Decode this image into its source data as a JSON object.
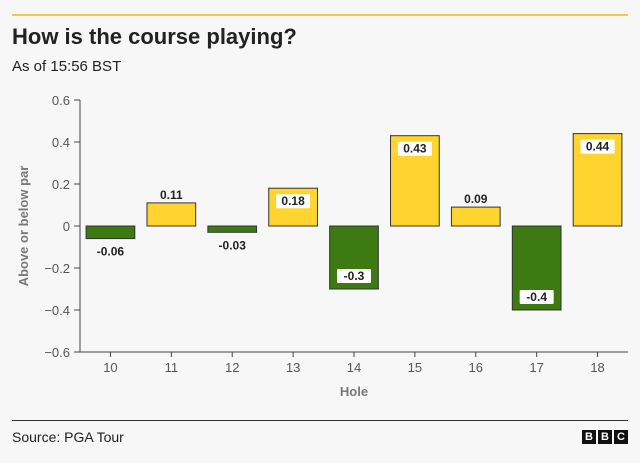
{
  "header": {
    "title": "How is the course playing?",
    "subtitle": "As of 15:56 BST"
  },
  "footer": {
    "source": "Source: PGA Tour",
    "logo_letters": [
      "B",
      "B",
      "C"
    ]
  },
  "colors": {
    "positive": "#ffd42e",
    "negative": "#3e7a12",
    "accent_rule": "#f2c94c"
  },
  "chart_data": {
    "type": "bar",
    "categories": [
      "10",
      "11",
      "12",
      "13",
      "14",
      "15",
      "16",
      "17",
      "18"
    ],
    "values": [
      -0.06,
      0.11,
      -0.03,
      0.18,
      -0.3,
      0.43,
      0.09,
      -0.4,
      0.44
    ],
    "value_labels": [
      "-0.06",
      "0.11",
      "-0.03",
      "0.18",
      "-0.3",
      "0.43",
      "0.09",
      "-0.4",
      "0.44"
    ],
    "xlabel": "Hole",
    "ylabel": "Above or below par",
    "ylim": [
      -0.6,
      0.6
    ],
    "yticks": [
      0.6,
      0.4,
      0.2,
      0,
      -0.2,
      -0.4,
      -0.6
    ],
    "ytick_labels": [
      "0.6",
      "0.4",
      "0.2",
      "0",
      "−0.2",
      "−0.4",
      "−0.6"
    ],
    "grid": false
  }
}
